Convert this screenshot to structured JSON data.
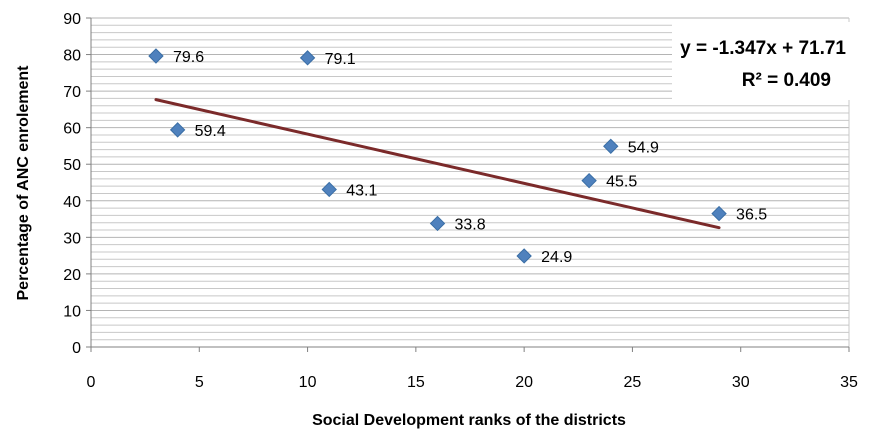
{
  "chart_data": {
    "type": "scatter",
    "title": "",
    "xlabel": "Social Development ranks of the districts",
    "ylabel": "Percentage of ANC enrolement",
    "xlim": [
      0,
      35
    ],
    "ylim": [
      0,
      90
    ],
    "x_ticks": [
      0,
      5,
      10,
      15,
      20,
      25,
      30,
      35
    ],
    "y_ticks": [
      0,
      10,
      20,
      30,
      40,
      50,
      60,
      70,
      80,
      90
    ],
    "grid": true,
    "series": [
      {
        "points": [
          {
            "x": 3,
            "y": 79.6,
            "label": "79.6"
          },
          {
            "x": 4,
            "y": 59.4,
            "label": "59.4"
          },
          {
            "x": 10,
            "y": 79.1,
            "label": "79.1"
          },
          {
            "x": 11,
            "y": 43.1,
            "label": "43.1"
          },
          {
            "x": 16,
            "y": 33.8,
            "label": "33.8"
          },
          {
            "x": 20,
            "y": 24.9,
            "label": "24.9"
          },
          {
            "x": 23,
            "y": 45.5,
            "label": "45.5"
          },
          {
            "x": 24,
            "y": 54.9,
            "label": "54.9"
          },
          {
            "x": 29,
            "y": 36.5,
            "label": "36.5"
          }
        ]
      }
    ],
    "trendline": {
      "slope": -1.347,
      "intercept": 71.71,
      "x_range": [
        3,
        29
      ],
      "equation": "y = -1.347x + 71.71",
      "r_squared": "R² = 0.409"
    },
    "colors": {
      "marker": "#4f81bd",
      "trendline": "#7b2a2a",
      "grid": "#c8c8c8",
      "axis": "#808080"
    }
  }
}
